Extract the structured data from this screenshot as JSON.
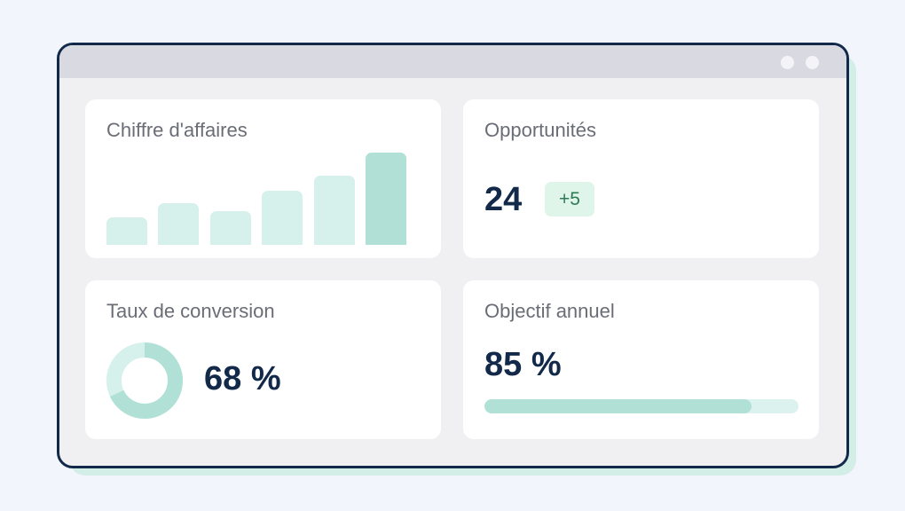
{
  "colors": {
    "background": "#f2f6fc",
    "window_border": "#13294a",
    "accent_light": "#d6f0ec",
    "accent": "#b0e0d6",
    "badge_bg": "#e0f5ea",
    "badge_text": "#2e7a55",
    "value_text": "#13294a"
  },
  "revenue": {
    "title": "Chiffre d'affaires",
    "bars": [
      30,
      45,
      37,
      59,
      75,
      100
    ],
    "highlight_index": 5
  },
  "opportunities": {
    "title": "Opportunités",
    "value": "24",
    "delta": "+5"
  },
  "conversion": {
    "title": "Taux de conversion",
    "value": "68 %",
    "fraction": 0.68
  },
  "goal": {
    "title": "Objectif annuel",
    "value": "85 %",
    "fraction": 0.85
  }
}
